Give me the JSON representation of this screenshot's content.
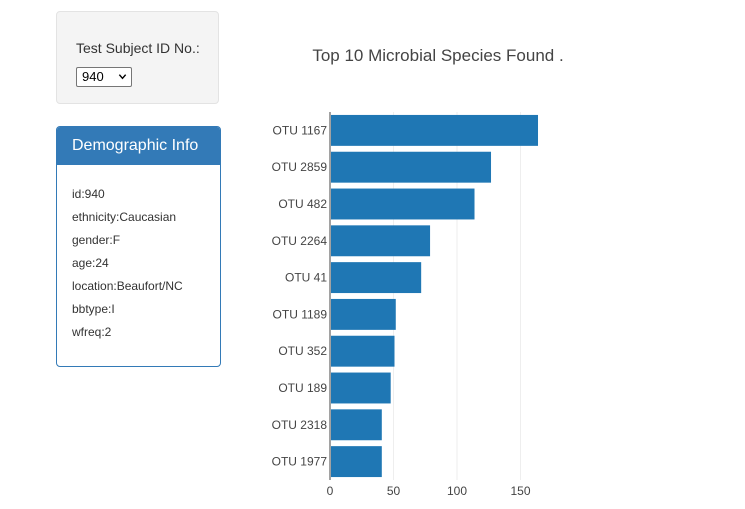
{
  "selector": {
    "label": "Test Subject ID No.:",
    "selected": "940"
  },
  "demographics": {
    "title": "Demographic Info",
    "rows": [
      "id:940",
      "ethnicity:Caucasian",
      "gender:F",
      "age:24",
      "location:Beaufort/NC",
      "bbtype:I",
      "wfreq:2"
    ]
  },
  "chart_data": {
    "type": "bar",
    "orientation": "horizontal",
    "title": "Top 10 Microbial Species Found .",
    "categories": [
      "OTU 1167",
      "OTU 2859",
      "OTU 482",
      "OTU 2264",
      "OTU 41",
      "OTU 1189",
      "OTU 352",
      "OTU 189",
      "OTU 2318",
      "OTU 1977"
    ],
    "values": [
      163,
      126,
      113,
      78,
      71,
      51,
      50,
      47,
      40,
      40
    ],
    "xlim": [
      0,
      175
    ],
    "xticks": [
      0,
      50,
      100,
      150
    ],
    "grid": true,
    "bar_color": "#1f77b4",
    "xlabel": "",
    "ylabel": ""
  }
}
